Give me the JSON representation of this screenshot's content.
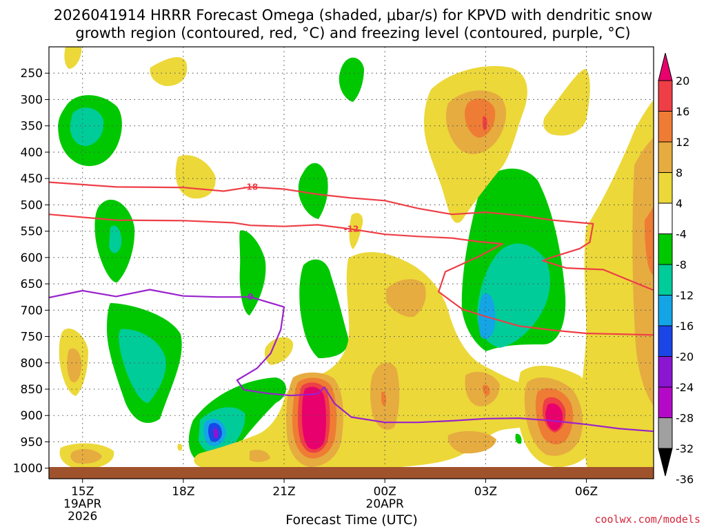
{
  "title": {
    "line1": "2026041914 HRRR Forecast Omega (shaded, μbar/s) for KPVD with dendritic snow",
    "line2": "growth region (contoured, red, °C) and freezing level (contoured, purple, °C)"
  },
  "chart_data": {
    "type": "time-height cross section",
    "title": "2026041914 HRRR Forecast Omega (shaded, μbar/s) for KPVD with dendritic snow growth region (contoured, red, °C) and freezing level (contoured, purple, °C)",
    "xlabel": "Forecast Time (UTC)",
    "ylabel": "",
    "x_ticks": [
      {
        "hour": 15,
        "label": "15Z",
        "date": "19APR",
        "year": "2026"
      },
      {
        "hour": 18,
        "label": "18Z"
      },
      {
        "hour": 21,
        "label": "21Z"
      },
      {
        "hour": 24,
        "label": "00Z",
        "date": "20APR"
      },
      {
        "hour": 27,
        "label": "03Z"
      },
      {
        "hour": 30,
        "label": "06Z"
      }
    ],
    "x_range_hours": [
      14,
      32
    ],
    "y_ticks": [
      250,
      300,
      350,
      400,
      450,
      500,
      550,
      600,
      650,
      700,
      750,
      800,
      850,
      900,
      950,
      1000
    ],
    "y_range_mb": [
      200,
      1020
    ],
    "colorbar": {
      "labels": [
        "20",
        "16",
        "12",
        "8",
        "4",
        "-4",
        "-8",
        "-12",
        "-16",
        "-20",
        "-24",
        "-28",
        "-32",
        "-36"
      ],
      "colors": [
        "#e8006c",
        "#ee3e46",
        "#ef7c34",
        "#e6ac40",
        "#ecd839",
        "#ffffff",
        "#00c800",
        "#00cc99",
        "#14a5e6",
        "#1a46e8",
        "#8a16d2",
        "#b40ac8",
        "#a0a0a0",
        "#000000"
      ]
    },
    "contours": [
      {
        "name": "dgz-upper",
        "label": "-18",
        "color": "#ee3e46",
        "points": [
          [
            14,
            457
          ],
          [
            16,
            466
          ],
          [
            18,
            467
          ],
          [
            19.2,
            474
          ],
          [
            20,
            466
          ],
          [
            21,
            470
          ],
          [
            22,
            480
          ],
          [
            23,
            487
          ],
          [
            24,
            492
          ],
          [
            25,
            507
          ],
          [
            26,
            518
          ],
          [
            27,
            514
          ],
          [
            28,
            520
          ],
          [
            29,
            529
          ],
          [
            30.2,
            536
          ],
          [
            30.1,
            571
          ],
          [
            29.8,
            583
          ],
          [
            29,
            599
          ],
          [
            28.7,
            606
          ],
          [
            29.4,
            620
          ],
          [
            30.5,
            623
          ],
          [
            32,
            662
          ]
        ]
      },
      {
        "name": "dgz-lower",
        "label": "-12",
        "color": "#ee3e46",
        "points": [
          [
            14,
            518
          ],
          [
            16,
            529
          ],
          [
            18,
            530
          ],
          [
            19.5,
            534
          ],
          [
            20,
            539
          ],
          [
            21,
            541
          ],
          [
            22,
            538
          ],
          [
            23,
            546
          ],
          [
            24,
            556
          ],
          [
            25,
            560
          ],
          [
            26,
            563
          ],
          [
            26.8,
            570
          ],
          [
            27.5,
            574
          ],
          [
            26.8,
            598
          ],
          [
            25.8,
            627
          ],
          [
            25.6,
            665
          ],
          [
            26.3,
            698
          ],
          [
            27,
            712
          ],
          [
            28,
            730
          ],
          [
            29,
            738
          ],
          [
            30,
            744
          ],
          [
            32,
            747
          ]
        ]
      },
      {
        "name": "freezing-level",
        "label": "0",
        "color": "#9922cc",
        "points": [
          [
            14,
            676
          ],
          [
            15,
            663
          ],
          [
            16,
            674
          ],
          [
            17,
            661
          ],
          [
            18,
            673
          ],
          [
            19,
            675
          ],
          [
            20,
            675
          ],
          [
            21,
            694
          ],
          [
            20.9,
            737
          ],
          [
            20.6,
            782
          ],
          [
            20.2,
            810
          ],
          [
            19.6,
            833
          ],
          [
            19.8,
            851
          ],
          [
            20.5,
            858
          ],
          [
            21.2,
            862
          ],
          [
            22,
            859
          ],
          [
            22.2,
            846
          ],
          [
            22.5,
            877
          ],
          [
            23,
            903
          ],
          [
            24,
            913
          ],
          [
            25,
            913
          ],
          [
            26,
            910
          ],
          [
            27,
            906
          ],
          [
            28,
            905
          ],
          [
            29,
            910
          ],
          [
            30,
            917
          ],
          [
            31,
            925
          ],
          [
            32,
            930
          ]
        ]
      }
    ]
  },
  "credit": "coolwx.com/models"
}
